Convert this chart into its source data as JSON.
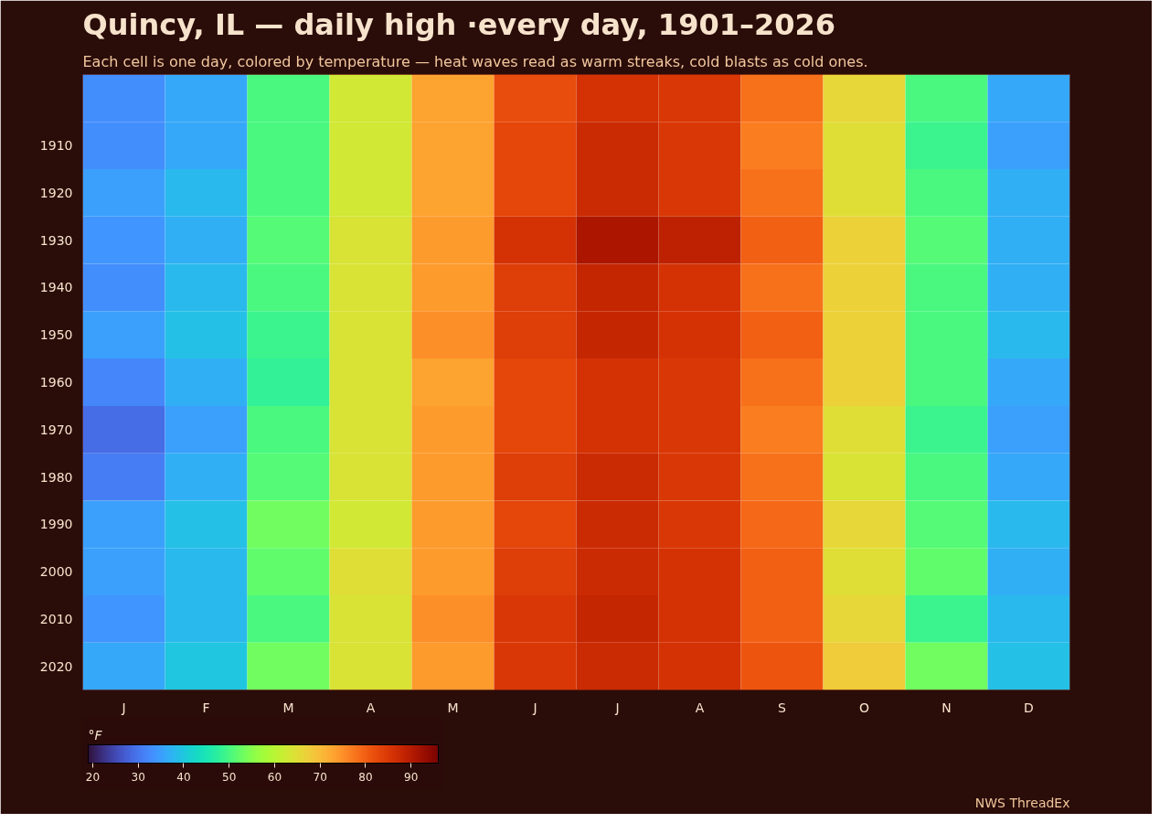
{
  "chart_data": {
    "type": "heatmap",
    "title": "Quincy, IL — daily high ·every day, 1901–2026",
    "subtitle": "Each cell is one day, colored by temperature — heat waves read as warm streaks, cold blasts as cold ones.",
    "categories": [
      "J",
      "F",
      "M",
      "A",
      "M",
      "J",
      "J",
      "A",
      "S",
      "O",
      "N",
      "D"
    ],
    "y_categories": [
      null,
      "1910",
      "1920",
      "1930",
      "1940",
      "1950",
      "1960",
      "1970",
      "1980",
      "1990",
      "2000",
      "2010",
      "2020"
    ],
    "cells": [
      [
        33,
        36,
        50,
        63,
        73,
        82,
        86,
        85,
        78,
        66,
        50,
        36
      ],
      [
        33,
        36,
        50,
        63,
        73,
        83,
        87,
        85,
        77,
        65,
        49,
        35
      ],
      [
        35,
        38,
        50,
        63,
        73,
        83,
        87,
        85,
        78,
        65,
        50,
        37
      ],
      [
        34,
        37,
        51,
        64,
        74,
        86,
        91,
        89,
        80,
        67,
        51,
        37
      ],
      [
        33,
        38,
        50,
        64,
        74,
        84,
        88,
        86,
        78,
        67,
        50,
        37
      ],
      [
        35,
        39,
        49,
        64,
        75,
        84,
        88,
        86,
        80,
        67,
        50,
        38
      ],
      [
        32,
        37,
        48,
        64,
        73,
        83,
        86,
        85,
        78,
        67,
        50,
        36
      ],
      [
        29,
        35,
        50,
        64,
        74,
        83,
        86,
        85,
        77,
        65,
        49,
        35
      ],
      [
        31,
        37,
        51,
        64,
        74,
        84,
        87,
        85,
        78,
        64,
        50,
        36
      ],
      [
        35,
        39,
        53,
        63,
        74,
        83,
        87,
        85,
        79,
        66,
        51,
        38
      ],
      [
        35,
        38,
        52,
        65,
        74,
        84,
        87,
        86,
        80,
        65,
        52,
        37
      ],
      [
        34,
        38,
        50,
        64,
        75,
        85,
        88,
        86,
        80,
        66,
        49,
        38
      ],
      [
        36,
        40,
        53,
        64,
        74,
        85,
        87,
        86,
        81,
        68,
        53,
        39
      ]
    ],
    "clim": [
      19,
      96
    ],
    "cticks": [
      20,
      30,
      40,
      50,
      60,
      70,
      80,
      90
    ],
    "clabel": "°F",
    "annotations": [
      "NWS ThreadEx"
    ]
  }
}
